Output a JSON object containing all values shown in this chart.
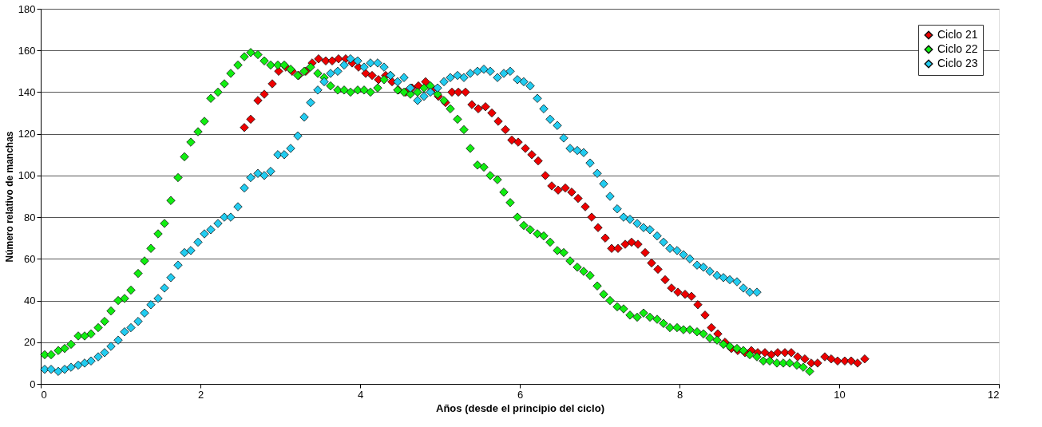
{
  "chart_data": {
    "type": "scatter",
    "xlabel": "Años (desde el principio del ciclo)",
    "ylabel": "Número relativo de manchas",
    "xlim": [
      0,
      12
    ],
    "xticks": [
      0,
      2,
      4,
      6,
      8,
      10,
      12
    ],
    "ylim": [
      0,
      180
    ],
    "yticks": [
      0,
      20,
      40,
      60,
      80,
      100,
      120,
      140,
      160,
      180
    ],
    "grid": "y",
    "legend": "top right",
    "marker": "diamond",
    "series": [
      {
        "name": "Ciclo 21",
        "color": "#ee0000",
        "x": [
          2.55,
          2.63,
          2.72,
          2.8,
          2.9,
          2.98,
          3.07,
          3.15,
          3.23,
          3.32,
          3.4,
          3.48,
          3.57,
          3.65,
          3.73,
          3.82,
          3.9,
          3.98,
          4.07,
          4.15,
          4.23,
          4.32,
          4.4,
          4.48,
          4.57,
          4.65,
          4.73,
          4.82,
          4.9,
          4.98,
          5.07,
          5.15,
          5.23,
          5.32,
          5.4,
          5.48,
          5.57,
          5.65,
          5.73,
          5.82,
          5.9,
          5.98,
          6.07,
          6.15,
          6.23,
          6.32,
          6.4,
          6.48,
          6.57,
          6.65,
          6.73,
          6.82,
          6.9,
          6.98,
          7.07,
          7.15,
          7.23,
          7.32,
          7.4,
          7.48,
          7.57,
          7.65,
          7.73,
          7.82,
          7.9,
          7.98,
          8.07,
          8.15,
          8.23,
          8.32,
          8.4,
          8.48,
          8.57,
          8.65,
          8.73,
          8.82,
          8.9,
          8.98,
          9.07,
          9.15,
          9.23,
          9.32,
          9.4,
          9.48,
          9.57,
          9.65,
          9.73,
          9.82,
          9.9,
          9.98,
          10.07,
          10.15,
          10.23,
          10.32
        ],
        "values": [
          123,
          127,
          136,
          139,
          144,
          150,
          152,
          150,
          148,
          150,
          154,
          156,
          155,
          155,
          156,
          156,
          154,
          152,
          149,
          148,
          146,
          148,
          145,
          141,
          140,
          142,
          143,
          145,
          141,
          138,
          135,
          140,
          140,
          140,
          134,
          132,
          133,
          130,
          126,
          122,
          117,
          116,
          113,
          110,
          107,
          100,
          95,
          93,
          94,
          92,
          89,
          85,
          80,
          75,
          70,
          65,
          65,
          67,
          68,
          67,
          63,
          58,
          55,
          50,
          46,
          44,
          43,
          42,
          38,
          33,
          27,
          24,
          20,
          17,
          16,
          15,
          16,
          15,
          15,
          14,
          15,
          15,
          15,
          13,
          12,
          10,
          10,
          13,
          12,
          11,
          11,
          11,
          10,
          12
        ]
      },
      {
        "name": "Ciclo 22",
        "color": "#11ee11",
        "x": [
          0.05,
          0.13,
          0.22,
          0.3,
          0.38,
          0.47,
          0.55,
          0.63,
          0.72,
          0.8,
          0.88,
          0.97,
          1.05,
          1.13,
          1.22,
          1.3,
          1.38,
          1.47,
          1.55,
          1.63,
          1.72,
          1.8,
          1.88,
          1.97,
          2.05,
          2.13,
          2.22,
          2.3,
          2.38,
          2.47,
          2.55,
          2.63,
          2.72,
          2.8,
          2.88,
          2.97,
          3.05,
          3.13,
          3.22,
          3.3,
          3.38,
          3.47,
          3.55,
          3.63,
          3.72,
          3.8,
          3.88,
          3.97,
          4.05,
          4.13,
          4.22,
          4.3,
          4.38,
          4.47,
          4.55,
          4.63,
          4.72,
          4.8,
          4.88,
          4.97,
          5.05,
          5.13,
          5.22,
          5.3,
          5.38,
          5.47,
          5.55,
          5.63,
          5.72,
          5.8,
          5.88,
          5.97,
          6.05,
          6.13,
          6.22,
          6.3,
          6.38,
          6.47,
          6.55,
          6.63,
          6.72,
          6.8,
          6.88,
          6.97,
          7.05,
          7.13,
          7.22,
          7.3,
          7.38,
          7.47,
          7.55,
          7.63,
          7.72,
          7.8,
          7.88,
          7.97,
          8.05,
          8.13,
          8.22,
          8.3,
          8.38,
          8.47,
          8.55,
          8.63,
          8.72,
          8.8,
          8.88,
          8.97,
          9.05,
          9.13,
          9.22,
          9.3,
          9.38,
          9.47,
          9.55,
          9.63
        ],
        "values": [
          14,
          14,
          16,
          17,
          19,
          23,
          23,
          24,
          27,
          30,
          35,
          40,
          41,
          45,
          53,
          59,
          65,
          72,
          77,
          88,
          99,
          109,
          116,
          121,
          126,
          137,
          140,
          144,
          149,
          153,
          157,
          159,
          158,
          155,
          153,
          153,
          153,
          151,
          148,
          150,
          152,
          149,
          147,
          143,
          141,
          141,
          140,
          141,
          141,
          140,
          142,
          146,
          148,
          141,
          140,
          139,
          140,
          142,
          143,
          139,
          136,
          132,
          127,
          122,
          113,
          105,
          104,
          100,
          98,
          92,
          87,
          80,
          76,
          74,
          72,
          71,
          68,
          64,
          63,
          59,
          56,
          54,
          52,
          47,
          43,
          40,
          37,
          36,
          33,
          32,
          34,
          32,
          31,
          29,
          27,
          27,
          26,
          26,
          25,
          24,
          22,
          21,
          19,
          18,
          17,
          16,
          14,
          13,
          11,
          11,
          10,
          10,
          10,
          9,
          8,
          6
        ]
      },
      {
        "name": "Ciclo 23",
        "color": "#22ccf0",
        "x": [
          0.05,
          0.13,
          0.22,
          0.3,
          0.38,
          0.47,
          0.55,
          0.63,
          0.72,
          0.8,
          0.88,
          0.97,
          1.05,
          1.13,
          1.22,
          1.3,
          1.38,
          1.47,
          1.55,
          1.63,
          1.72,
          1.8,
          1.88,
          1.97,
          2.05,
          2.13,
          2.22,
          2.3,
          2.38,
          2.47,
          2.55,
          2.63,
          2.72,
          2.8,
          2.88,
          2.97,
          3.05,
          3.13,
          3.22,
          3.3,
          3.38,
          3.47,
          3.55,
          3.63,
          3.72,
          3.8,
          3.88,
          3.97,
          4.05,
          4.13,
          4.22,
          4.3,
          4.38,
          4.47,
          4.55,
          4.63,
          4.72,
          4.8,
          4.88,
          4.97,
          5.05,
          5.13,
          5.22,
          5.3,
          5.38,
          5.47,
          5.55,
          5.63,
          5.72,
          5.8,
          5.88,
          5.97,
          6.05,
          6.13,
          6.22,
          6.3,
          6.38,
          6.47,
          6.55,
          6.63,
          6.72,
          6.8,
          6.88,
          6.97,
          7.05,
          7.13,
          7.22,
          7.3,
          7.38,
          7.47,
          7.55,
          7.63,
          7.72,
          7.8,
          7.88,
          7.97,
          8.05,
          8.13,
          8.22,
          8.3,
          8.38,
          8.47,
          8.55,
          8.63,
          8.72,
          8.8,
          8.88,
          8.97
        ],
        "values": [
          7,
          7,
          6,
          7,
          8,
          9,
          10,
          11,
          13,
          15,
          18,
          21,
          25,
          27,
          30,
          34,
          38,
          41,
          46,
          51,
          57,
          63,
          64,
          68,
          72,
          74,
          77,
          80,
          80,
          85,
          94,
          99,
          101,
          100,
          102,
          110,
          110,
          113,
          119,
          128,
          135,
          141,
          145,
          149,
          150,
          153,
          156,
          155,
          152,
          154,
          154,
          152,
          148,
          145,
          147,
          142,
          136,
          138,
          140,
          142,
          145,
          147,
          148,
          147,
          149,
          150,
          151,
          150,
          147,
          149,
          150,
          146,
          145,
          143,
          137,
          132,
          127,
          124,
          118,
          113,
          112,
          111,
          106,
          101,
          96,
          90,
          84,
          80,
          79,
          77,
          75,
          74,
          71,
          68,
          65,
          64,
          62,
          60,
          57,
          56,
          54,
          52,
          51,
          50,
          49,
          46,
          44,
          44
        ]
      }
    ]
  }
}
